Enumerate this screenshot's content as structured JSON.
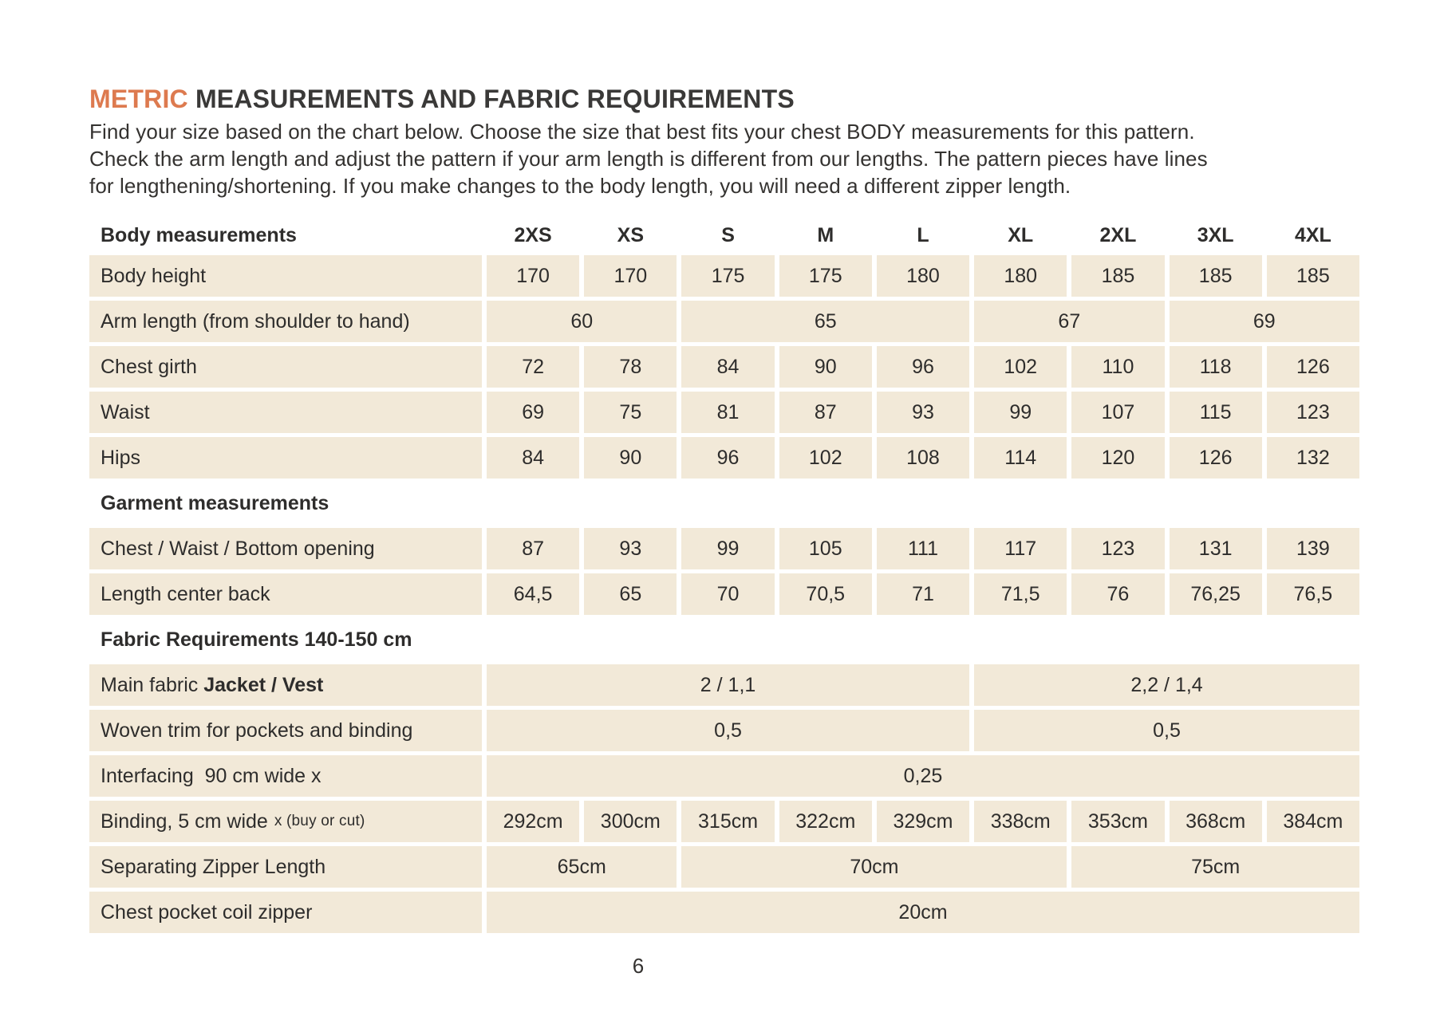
{
  "colors": {
    "accent_orange": "#dd7a4f",
    "row_background": "#f2e9d8",
    "text": "#2e2d2c",
    "page_background": "#ffffff"
  },
  "header": {
    "title_highlight": "METRIC",
    "title_rest": " MEASUREMENTS AND FABRIC REQUIREMENTS",
    "intro_lines": [
      "Find your size based on the chart below. Choose the size that best fits your chest BODY measurements for this pattern.",
      "Check the arm length and adjust the pattern if your arm length is different from our lengths. The pattern pieces have lines",
      "for lengthening/shortening. If you make changes to the body length, you will need a different zipper length."
    ]
  },
  "table": {
    "columns_label": "Body measurements",
    "sizes": [
      "2XS",
      "XS",
      "S",
      "M",
      "L",
      "XL",
      "2XL",
      "3XL",
      "4XL"
    ],
    "rows": [
      {
        "type": "data",
        "label_parts": [
          {
            "t": "Body height",
            "s": "normal"
          }
        ],
        "cells": [
          {
            "v": "170"
          },
          {
            "v": "170"
          },
          {
            "v": "175"
          },
          {
            "v": "175"
          },
          {
            "v": "180"
          },
          {
            "v": "180"
          },
          {
            "v": "185"
          },
          {
            "v": "185"
          },
          {
            "v": "185"
          }
        ]
      },
      {
        "type": "data",
        "label_parts": [
          {
            "t": "Arm length (from shoulder to hand)",
            "s": "normal"
          }
        ],
        "cells": [
          {
            "v": "60",
            "span": 2
          },
          {
            "v": "65",
            "span": 3
          },
          {
            "v": "67",
            "span": 2
          },
          {
            "v": "69",
            "span": 2
          }
        ]
      },
      {
        "type": "data",
        "label_parts": [
          {
            "t": "Chest girth",
            "s": "normal"
          }
        ],
        "cells": [
          {
            "v": "72"
          },
          {
            "v": "78"
          },
          {
            "v": "84"
          },
          {
            "v": "90"
          },
          {
            "v": "96"
          },
          {
            "v": "102"
          },
          {
            "v": "110"
          },
          {
            "v": "118"
          },
          {
            "v": "126"
          }
        ]
      },
      {
        "type": "data",
        "label_parts": [
          {
            "t": "Waist",
            "s": "normal"
          }
        ],
        "cells": [
          {
            "v": "69"
          },
          {
            "v": "75"
          },
          {
            "v": "81"
          },
          {
            "v": "87"
          },
          {
            "v": "93"
          },
          {
            "v": "99"
          },
          {
            "v": "107"
          },
          {
            "v": "115"
          },
          {
            "v": "123"
          }
        ]
      },
      {
        "type": "data",
        "label_parts": [
          {
            "t": "Hips",
            "s": "normal"
          }
        ],
        "cells": [
          {
            "v": "84"
          },
          {
            "v": "90"
          },
          {
            "v": "96"
          },
          {
            "v": "102"
          },
          {
            "v": "108"
          },
          {
            "v": "114"
          },
          {
            "v": "120"
          },
          {
            "v": "126"
          },
          {
            "v": "132"
          }
        ]
      },
      {
        "type": "section",
        "label_parts": [
          {
            "t": "Garment measurements",
            "s": "normal"
          }
        ]
      },
      {
        "type": "data",
        "label_parts": [
          {
            "t": "Chest / Waist / Bottom opening",
            "s": "normal"
          }
        ],
        "cells": [
          {
            "v": "87"
          },
          {
            "v": "93"
          },
          {
            "v": "99"
          },
          {
            "v": "105"
          },
          {
            "v": "111"
          },
          {
            "v": "117"
          },
          {
            "v": "123"
          },
          {
            "v": "131"
          },
          {
            "v": "139"
          }
        ]
      },
      {
        "type": "data",
        "label_parts": [
          {
            "t": "Length center back",
            "s": "normal"
          }
        ],
        "cells": [
          {
            "v": "64,5"
          },
          {
            "v": "65"
          },
          {
            "v": "70"
          },
          {
            "v": "70,5"
          },
          {
            "v": "71"
          },
          {
            "v": "71,5"
          },
          {
            "v": "76"
          },
          {
            "v": "76,25"
          },
          {
            "v": "76,5"
          }
        ]
      },
      {
        "type": "section",
        "label_parts": [
          {
            "t": "Fabric Requirements 140-150 cm",
            "s": "normal"
          }
        ]
      },
      {
        "type": "data",
        "label_parts": [
          {
            "t": "Main fabric ",
            "s": "normal"
          },
          {
            "t": "Jacket / Vest",
            "s": "bold"
          }
        ],
        "cells": [
          {
            "v": "2 / 1,1",
            "span": 5
          },
          {
            "v": "2,2 / 1,4",
            "span": 4
          }
        ]
      },
      {
        "type": "data",
        "label_parts": [
          {
            "t": "Woven trim for pockets and binding",
            "s": "normal"
          }
        ],
        "cells": [
          {
            "v": "0,5",
            "span": 5
          },
          {
            "v": "0,5",
            "span": 4
          }
        ]
      },
      {
        "type": "data",
        "label_parts": [
          {
            "t": "Interfacing  90 cm wide x",
            "s": "normal"
          }
        ],
        "cells": [
          {
            "v": "0,25",
            "span": 9
          }
        ]
      },
      {
        "type": "data",
        "label_parts": [
          {
            "t": "Binding, 5 cm wide",
            "s": "normal"
          },
          {
            "t": "x (buy or cut)",
            "s": "small"
          }
        ],
        "cells": [
          {
            "v": "292cm"
          },
          {
            "v": "300cm"
          },
          {
            "v": "315cm"
          },
          {
            "v": "322cm"
          },
          {
            "v": "329cm"
          },
          {
            "v": "338cm"
          },
          {
            "v": "353cm"
          },
          {
            "v": "368cm"
          },
          {
            "v": "384cm"
          }
        ]
      },
      {
        "type": "data",
        "label_parts": [
          {
            "t": "Separating Zipper Length",
            "s": "normal"
          }
        ],
        "cells": [
          {
            "v": "65cm",
            "span": 2
          },
          {
            "v": "70cm",
            "span": 4
          },
          {
            "v": "75cm",
            "span": 3
          }
        ]
      },
      {
        "type": "data",
        "label_parts": [
          {
            "t": "Chest pocket coil zipper",
            "s": "normal"
          }
        ],
        "cells": [
          {
            "v": "20cm",
            "span": 9
          }
        ]
      }
    ]
  },
  "footer": {
    "page_number": "6"
  }
}
